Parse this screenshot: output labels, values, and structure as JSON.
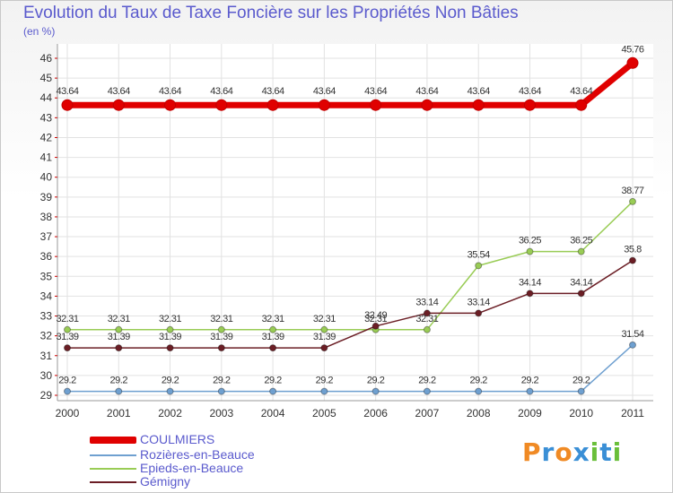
{
  "chart_data": {
    "type": "line",
    "title": "Evolution du Taux de Taxe Foncière sur les Propriétés Non Bâties",
    "ylabel": "(en %)",
    "xlabel": "",
    "categories": [
      "2000",
      "2001",
      "2002",
      "2003",
      "2004",
      "2005",
      "2006",
      "2007",
      "2008",
      "2009",
      "2010",
      "2011"
    ],
    "ylim": [
      29,
      46
    ],
    "yticks": [
      "29",
      "30",
      "31",
      "32",
      "33",
      "34",
      "35",
      "36",
      "37",
      "38",
      "39",
      "40",
      "41",
      "42",
      "43",
      "44",
      "45",
      "46"
    ],
    "grid": true,
    "series": [
      {
        "name": "COULMIERS",
        "color": "#e00000",
        "values": [
          43.64,
          43.64,
          43.64,
          43.64,
          43.64,
          43.64,
          43.64,
          43.64,
          43.64,
          43.64,
          43.64,
          45.76
        ],
        "labels": [
          "43.64",
          "43.64",
          "43.64",
          "43.64",
          "43.64",
          "43.64",
          "43.64",
          "43.64",
          "43.64",
          "43.64",
          "43.64",
          "45.76"
        ]
      },
      {
        "name": "Rozières-en-Beauce",
        "color": "#6fa0d0",
        "values": [
          29.2,
          29.2,
          29.2,
          29.2,
          29.2,
          29.2,
          29.2,
          29.2,
          29.2,
          29.2,
          29.2,
          31.54
        ],
        "labels": [
          "29.2",
          "29.2",
          "29.2",
          "29.2",
          "29.2",
          "29.2",
          "29.2",
          "29.2",
          "29.2",
          "29.2",
          "29.2",
          "31.54"
        ]
      },
      {
        "name": "Epieds-en-Beauce",
        "color": "#99cc55",
        "values": [
          32.31,
          32.31,
          32.31,
          32.31,
          32.31,
          32.31,
          32.31,
          32.31,
          35.54,
          36.25,
          36.25,
          38.77
        ],
        "labels": [
          "32.31",
          "32.31",
          "32.31",
          "32.31",
          "32.31",
          "32.31",
          "32.31",
          "32.31",
          "35.54",
          "36.25",
          "36.25",
          "38.77"
        ]
      },
      {
        "name": "Gémigny",
        "color": "#6b1e25",
        "values": [
          31.39,
          31.39,
          31.39,
          31.39,
          31.39,
          31.39,
          32.49,
          33.14,
          33.14,
          34.14,
          34.14,
          35.8
        ],
        "labels": [
          "31.39",
          "31.39",
          "31.39",
          "31.39",
          "31.39",
          "31.39",
          "32.49",
          "33.14",
          "33.14",
          "34.14",
          "34.14",
          "35.8"
        ]
      }
    ]
  },
  "legend": {
    "items": [
      "COULMIERS",
      "Rozières-en-Beauce",
      "Epieds-en-Beauce",
      "Gémigny"
    ]
  },
  "logo": {
    "letters": [
      "P",
      "r",
      "o",
      "x",
      "i",
      "t",
      "i"
    ]
  }
}
